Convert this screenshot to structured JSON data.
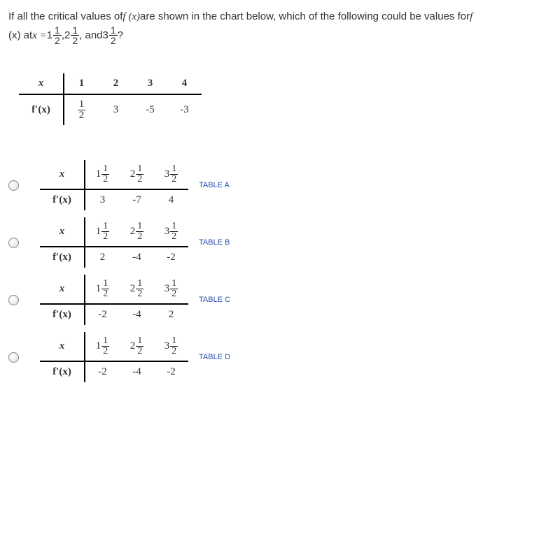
{
  "question": {
    "part1_pre": "If all the critical values of ",
    "fxsym": "f (x)",
    "part1_mid": " are shown in the chart below, which of the following could be values for ",
    "fsym": "f",
    "line2_pre": "(x) at ",
    "xeq": "x = ",
    "mixed": [
      {
        "whole": "1",
        "n": "1",
        "d": "2"
      },
      {
        "whole": "2",
        "n": "1",
        "d": "2"
      },
      {
        "whole": "3",
        "n": "1",
        "d": "2"
      }
    ],
    "sep": ",",
    "and": ", and ",
    "qmark": "?"
  },
  "given_table": {
    "row_x_label": "x",
    "row_fp_label": "f′(x)",
    "x_vals": [
      "1",
      "2",
      "3",
      "4"
    ],
    "fp_vals": [
      {
        "type": "frac",
        "n": "1",
        "d": "2"
      },
      "3",
      "-5",
      "-3"
    ]
  },
  "options": [
    {
      "label": "TABLE A",
      "x_vals": [
        {
          "w": "1",
          "n": "1",
          "d": "2"
        },
        {
          "w": "2",
          "n": "1",
          "d": "2"
        },
        {
          "w": "3",
          "n": "1",
          "d": "2"
        }
      ],
      "fp_vals": [
        "3",
        "-7",
        "4"
      ]
    },
    {
      "label": "TABLE B",
      "x_vals": [
        {
          "w": "1",
          "n": "1",
          "d": "2"
        },
        {
          "w": "2",
          "n": "1",
          "d": "2"
        },
        {
          "w": "3",
          "n": "1",
          "d": "2"
        }
      ],
      "fp_vals": [
        "2",
        "-4",
        "-2"
      ]
    },
    {
      "label": "TABLE C",
      "x_vals": [
        {
          "w": "1",
          "n": "1",
          "d": "2"
        },
        {
          "w": "2",
          "n": "1",
          "d": "2"
        },
        {
          "w": "3",
          "n": "1",
          "d": "2"
        }
      ],
      "fp_vals": [
        "-2",
        "-4",
        "2"
      ]
    },
    {
      "label": "TABLE D",
      "x_vals": [
        {
          "w": "1",
          "n": "1",
          "d": "2"
        },
        {
          "w": "2",
          "n": "1",
          "d": "2"
        },
        {
          "w": "3",
          "n": "1",
          "d": "2"
        }
      ],
      "fp_vals": [
        "-2",
        "-4",
        "-2"
      ]
    }
  ],
  "row_labels": {
    "x": "x",
    "fp": "f′(x)"
  }
}
